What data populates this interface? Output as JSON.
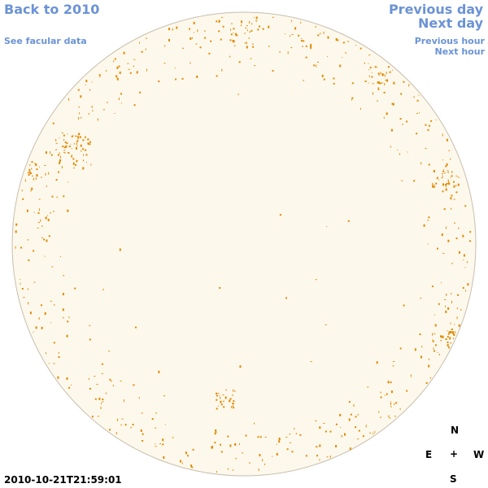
{
  "nav": {
    "back_label": "Back to 2010",
    "facular_label": "See facular data",
    "prev_day_label": "Previous day",
    "next_day_label": "Next day",
    "prev_hour_label": "Previous hour",
    "next_hour_label": "Next hour"
  },
  "timestamp": "2010-10-21T21:59:01",
  "compass": {
    "north": "N",
    "east": "E",
    "center": "+",
    "west": "W",
    "south": "S"
  },
  "colors": {
    "link": "#6b93d6",
    "disk_fill": "#fdf8ec",
    "disk_edge": "#c8bfae",
    "facula": "#e08a00"
  }
}
